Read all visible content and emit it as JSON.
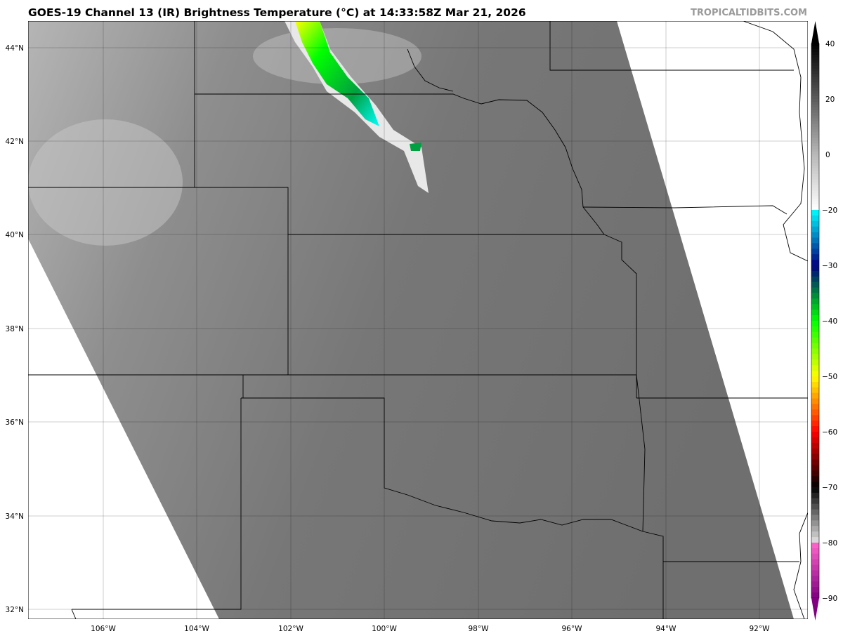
{
  "header": {
    "title": "GOES-19 Channel 13 (IR) Brightness Temperature (°C) at 14:33:58Z Mar 21, 2026",
    "brand": "TROPICALTIDBITS.COM"
  },
  "map": {
    "projection": "plate carree",
    "longitude_labels": [
      "106°W",
      "104°W",
      "102°W",
      "100°W",
      "98°W",
      "96°W",
      "94°W",
      "92°W"
    ],
    "latitude_labels": [
      "44°N",
      "42°N",
      "40°N",
      "38°N",
      "36°N",
      "34°N",
      "32°N"
    ],
    "grid": true,
    "colors": {
      "swath_gray": "#7a7a7a",
      "no_data": "#ffffff",
      "border": "#000000"
    }
  },
  "colorbar": {
    "labels": [
      "40",
      "20",
      "0",
      "−20",
      "−30",
      "−40",
      "−50",
      "−60",
      "−70",
      "−80",
      "−90"
    ],
    "stops": [
      {
        "value": 40,
        "color": "#000000"
      },
      {
        "value": 0,
        "color": "#b8b8b8"
      },
      {
        "value": -20,
        "color": "#ffffff"
      },
      {
        "value": -20.01,
        "color": "#00ffff"
      },
      {
        "value": -30,
        "color": "#000080"
      },
      {
        "value": -35,
        "color": "#008040"
      },
      {
        "value": -40,
        "color": "#00ff00"
      },
      {
        "value": -50,
        "color": "#ffff00"
      },
      {
        "value": -55,
        "color": "#ff8000"
      },
      {
        "value": -60,
        "color": "#ff0000"
      },
      {
        "value": -70,
        "color": "#000000"
      },
      {
        "value": -79.9,
        "color": "#e0e0e0"
      },
      {
        "value": -80,
        "color": "#ff66cc"
      },
      {
        "value": -90,
        "color": "#800080"
      }
    ]
  }
}
